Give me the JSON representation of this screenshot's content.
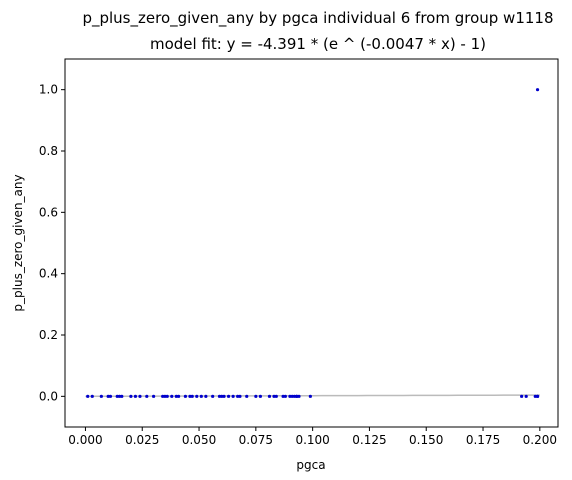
{
  "chart_data": {
    "type": "scatter",
    "title": "p_plus_zero_given_any by pgca individual 6 from group w1118",
    "subtitle": "model fit: y = -4.391 * (e ^ (-0.0047 * x) - 1)",
    "xlabel": "pgca",
    "ylabel": "p_plus_zero_given_any",
    "xlim": [
      -0.009,
      0.208
    ],
    "ylim": [
      -0.1,
      1.1
    ],
    "x_ticks": [
      "0.000",
      "0.025",
      "0.050",
      "0.075",
      "0.100",
      "0.125",
      "0.150",
      "0.175",
      "0.200"
    ],
    "y_ticks": [
      "0.0",
      "0.2",
      "0.4",
      "0.6",
      "0.8",
      "1.0"
    ],
    "grid": false,
    "fit": {
      "a": -4.391,
      "b": -0.0047,
      "color": "#bbbbbb"
    },
    "point_color": "#0000cc",
    "points": [
      [
        0.001,
        0
      ],
      [
        0.003,
        0
      ],
      [
        0.007,
        0
      ],
      [
        0.01,
        0
      ],
      [
        0.011,
        0
      ],
      [
        0.014,
        0
      ],
      [
        0.015,
        0
      ],
      [
        0.016,
        0
      ],
      [
        0.02,
        0
      ],
      [
        0.022,
        0
      ],
      [
        0.024,
        0
      ],
      [
        0.027,
        0
      ],
      [
        0.03,
        0
      ],
      [
        0.034,
        0
      ],
      [
        0.035,
        0
      ],
      [
        0.036,
        0
      ],
      [
        0.038,
        0
      ],
      [
        0.04,
        0
      ],
      [
        0.041,
        0
      ],
      [
        0.044,
        0
      ],
      [
        0.046,
        0
      ],
      [
        0.047,
        0
      ],
      [
        0.049,
        0
      ],
      [
        0.051,
        0
      ],
      [
        0.053,
        0
      ],
      [
        0.056,
        0
      ],
      [
        0.059,
        0
      ],
      [
        0.06,
        0
      ],
      [
        0.061,
        0
      ],
      [
        0.063,
        0
      ],
      [
        0.065,
        0
      ],
      [
        0.067,
        0
      ],
      [
        0.068,
        0
      ],
      [
        0.071,
        0
      ],
      [
        0.075,
        0
      ],
      [
        0.077,
        0
      ],
      [
        0.081,
        0
      ],
      [
        0.083,
        0
      ],
      [
        0.084,
        0
      ],
      [
        0.087,
        0
      ],
      [
        0.088,
        0
      ],
      [
        0.09,
        0
      ],
      [
        0.091,
        0
      ],
      [
        0.092,
        0
      ],
      [
        0.093,
        0
      ],
      [
        0.093,
        0
      ],
      [
        0.094,
        0
      ],
      [
        0.099,
        0
      ],
      [
        0.192,
        0
      ],
      [
        0.194,
        0
      ],
      [
        0.198,
        0
      ],
      [
        0.199,
        0
      ],
      [
        0.199,
        0
      ],
      [
        0.199,
        1.0
      ]
    ]
  }
}
